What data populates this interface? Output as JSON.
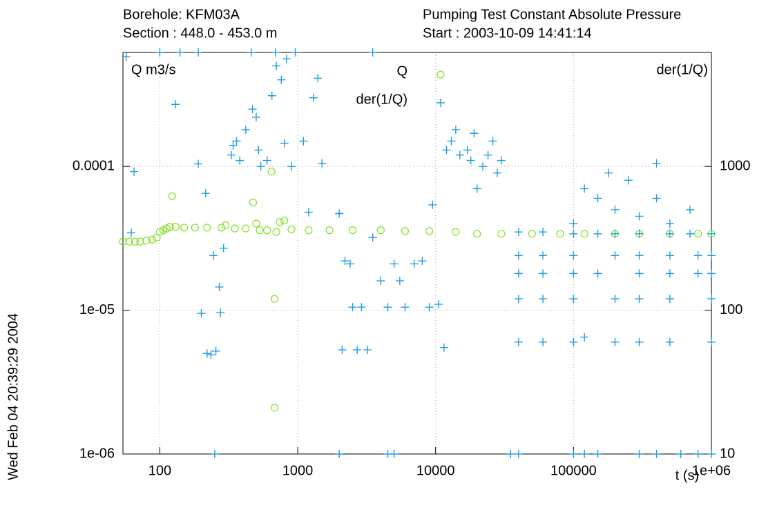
{
  "chart_data": {
    "type": "scatter",
    "title_left": [
      "Borehole: KFM03A",
      "Section : 448.0   - 453.0  m"
    ],
    "title_right": [
      "Pumping Test Constant Absolute Pressure",
      "Start  : 2003-10-09 14:41:14"
    ],
    "y_label": "Q  m3/s",
    "y2_label": "der(1/Q)",
    "x_label": "t (s)",
    "timestamp": "Wed Feb 04 20:39:29 2004",
    "log_x": true,
    "log_y": true,
    "grid": true,
    "xlim": [
      54,
      1000000
    ],
    "xticks": [
      100,
      1000,
      10000,
      100000,
      {
        "value": 1000000,
        "label": "1e+06"
      }
    ],
    "ylim": [
      1e-06,
      0.00062
    ],
    "yticks": [
      {
        "value": 1e-06,
        "label": "1e-06"
      },
      {
        "value": 1e-05,
        "label": "1e-05"
      },
      0.0001
    ],
    "y2lim": [
      10,
      6200
    ],
    "y2ticks": [
      10,
      100,
      1000
    ],
    "series": [
      {
        "name": "Q",
        "color": "#7fe020",
        "marker": "circle",
        "axis": "y",
        "x": [
          54,
          60,
          66,
          72,
          80,
          88,
          95,
          100,
          106,
          112,
          118,
          123,
          130,
          150,
          180,
          220,
          280,
          300,
          350,
          420,
          475,
          500,
          530,
          600,
          646,
          680,
          680,
          700,
          740,
          800,
          900,
          1200,
          1700,
          2500,
          4000,
          6000,
          9000,
          14000,
          20000,
          30000,
          50000,
          80000,
          120000,
          200000,
          300000,
          500000,
          800000,
          1000000
        ],
        "values": [
          3e-05,
          3e-05,
          3e-05,
          3e-05,
          3.05e-05,
          3.1e-05,
          3.2e-05,
          3.5e-05,
          3.6e-05,
          3.7e-05,
          3.8e-05,
          6.2e-05,
          3.8e-05,
          3.75e-05,
          3.75e-05,
          3.75e-05,
          3.75e-05,
          3.9e-05,
          3.7e-05,
          3.7e-05,
          5.6e-05,
          4e-05,
          3.6e-05,
          3.6e-05,
          9.2e-05,
          1.2e-05,
          2.1e-06,
          3.5e-05,
          4.1e-05,
          4.2e-05,
          3.65e-05,
          3.6e-05,
          3.6e-05,
          3.6e-05,
          3.6e-05,
          3.55e-05,
          3.55e-05,
          3.5e-05,
          3.4e-05,
          3.4e-05,
          3.4e-05,
          3.4e-05,
          3.4e-05,
          3.4e-05,
          3.4e-05,
          3.4e-05,
          3.4e-05,
          3.4e-05
        ]
      },
      {
        "name": "der(1/Q)",
        "color": "#1e9be0",
        "marker": "plus",
        "axis": "y2",
        "x": [
          57,
          62,
          65,
          100,
          130,
          140,
          190,
          190,
          200,
          215,
          220,
          235,
          245,
          250,
          255,
          270,
          275,
          290,
          330,
          340,
          360,
          380,
          420,
          460,
          470,
          500,
          520,
          540,
          600,
          650,
          690,
          700,
          760,
          800,
          830,
          900,
          960,
          1100,
          1200,
          1300,
          1400,
          1500,
          2000,
          2000,
          2100,
          2200,
          2400,
          2500,
          2700,
          2900,
          3200,
          3500,
          3500,
          4000,
          4500,
          4500,
          5000,
          5000,
          5500,
          6000,
          7000,
          8000,
          9000,
          9500,
          10500,
          11500,
          12000,
          13000,
          14000,
          15000,
          17000,
          18000,
          19000,
          20000,
          22000,
          24000,
          26000,
          28000,
          30000,
          35000,
          40000,
          40000,
          40000,
          40000,
          40000,
          40000,
          60000,
          60000,
          60000,
          60000,
          60000,
          100000,
          100000,
          100000,
          100000,
          100000,
          100000,
          100000,
          120000,
          120000,
          120000,
          150000,
          150000,
          150000,
          150000,
          180000,
          200000,
          200000,
          200000,
          200000,
          200000,
          250000,
          300000,
          300000,
          300000,
          300000,
          300000,
          300000,
          300000,
          400000,
          400000,
          400000,
          500000,
          500000,
          500000,
          500000,
          500000,
          500000,
          600000,
          700000,
          700000,
          800000,
          800000,
          800000,
          1000000,
          1000000,
          1000000,
          1000000,
          1000000,
          1000000
        ],
        "values": [
          5800,
          345,
          920,
          6200,
          2700,
          6200,
          1040,
          6200,
          95,
          650,
          50,
          49,
          240,
          10,
          52,
          145,
          96,
          270,
          1200,
          1400,
          1500,
          1100,
          1800,
          6200,
          2500,
          2200,
          1300,
          1000,
          1100,
          3100,
          6200,
          5000,
          4000,
          1450,
          5600,
          1000,
          6200,
          1500,
          480,
          3000,
          4100,
          1050,
          470,
          10,
          53,
          220,
          210,
          105,
          53,
          105,
          53,
          320,
          6200,
          160,
          105,
          10,
          210,
          10,
          160,
          105,
          210,
          220,
          105,
          540,
          110,
          55,
          1300,
          1500,
          1800,
          1200,
          1300,
          1100,
          1700,
          700,
          1000,
          1200,
          1500,
          900,
          1100,
          10,
          350,
          240,
          180,
          120,
          60,
          10,
          350,
          240,
          180,
          120,
          60,
          400,
          340,
          240,
          180,
          120,
          60,
          10,
          65,
          700,
          10,
          600,
          340,
          180,
          10,
          900,
          500,
          340,
          240,
          120,
          60,
          800,
          450,
          340,
          240,
          180,
          120,
          60,
          10,
          1050,
          600,
          10,
          400,
          340,
          240,
          180,
          120,
          60,
          10,
          500,
          340,
          240,
          180,
          10,
          340,
          240,
          180,
          120,
          60,
          10
        ]
      }
    ]
  }
}
